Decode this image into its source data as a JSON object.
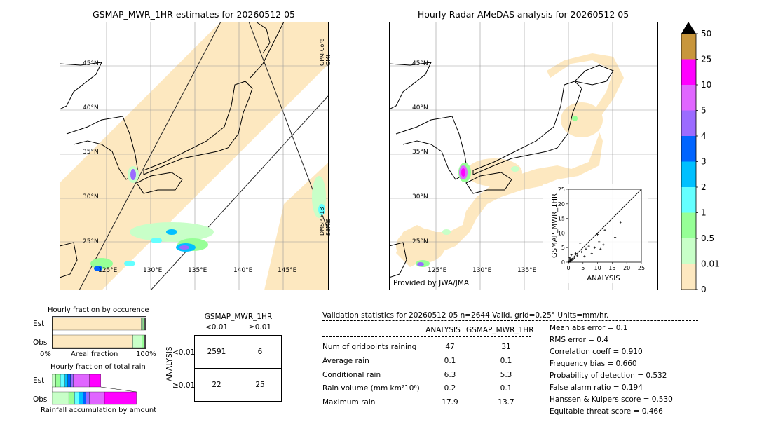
{
  "left_map": {
    "title": "GSMAP_MWR_1HR estimates for 20260512 05",
    "lat_labels": [
      "45°N",
      "40°N",
      "35°N",
      "30°N",
      "25°N"
    ],
    "lon_labels": [
      "125°E",
      "130°E",
      "135°E",
      "140°E",
      "145°E"
    ],
    "swath_labels": [
      "GPM-Core\nGMI",
      "DMSP-F18\nSSMIS"
    ]
  },
  "right_map": {
    "title": "Hourly Radar-AMeDAS analysis for 20260512 05",
    "lat_labels": [
      "45°N",
      "40°N",
      "35°N",
      "30°N",
      "25°N"
    ],
    "lon_labels": [
      "125°E",
      "130°E",
      "135°E"
    ],
    "credit": "Provided by JWA/JMA"
  },
  "colorbar": {
    "labels": [
      "50",
      "25",
      "10",
      "5",
      "4",
      "3",
      "2",
      "1",
      "0.5",
      "0.01",
      "0"
    ],
    "colors": [
      "#c8963c",
      "#ff00ff",
      "#e066ff",
      "#9b6bff",
      "#0064ff",
      "#00c0ff",
      "#64ffff",
      "#96ff96",
      "#c8ffc8",
      "#fde8c0"
    ]
  },
  "chart_data": [
    {
      "type": "scatter",
      "xlabel": "ANALYSIS",
      "ylabel": "GSMAP_MWR_1HR",
      "xlim": [
        0,
        25
      ],
      "ylim": [
        0,
        25
      ],
      "x_ticks": [
        "0",
        "5",
        "10",
        "15",
        "20",
        "25"
      ],
      "y_ticks": [
        "0",
        "5",
        "10",
        "15",
        "20",
        "25"
      ],
      "points": [
        [
          0.1,
          0.2
        ],
        [
          0.2,
          0.1
        ],
        [
          0.3,
          0.4
        ],
        [
          0.5,
          0.2
        ],
        [
          0.6,
          0.8
        ],
        [
          0.8,
          0.3
        ],
        [
          1.0,
          0.6
        ],
        [
          1.2,
          1.0
        ],
        [
          0.4,
          1.5
        ],
        [
          0.7,
          1.2
        ],
        [
          1.5,
          0.9
        ],
        [
          2.0,
          1.4
        ],
        [
          1.0,
          2.5
        ],
        [
          2.5,
          3.0
        ],
        [
          3.0,
          2.2
        ],
        [
          4.0,
          6.5
        ],
        [
          4.5,
          3.5
        ],
        [
          5.5,
          2.0
        ],
        [
          6.0,
          4.5
        ],
        [
          7.0,
          5.5
        ],
        [
          8.0,
          3.0
        ],
        [
          9.0,
          5.0
        ],
        [
          10.0,
          9.5
        ],
        [
          10.5,
          7.0
        ],
        [
          11.0,
          4.5
        ],
        [
          12.0,
          6.0
        ],
        [
          12.5,
          11.0
        ],
        [
          16.0,
          8.5
        ],
        [
          17.9,
          13.7
        ]
      ]
    },
    {
      "type": "bar",
      "title": "Hourly fraction by occurence",
      "categories": [
        "Est",
        "Obs"
      ],
      "xlabel": "Areal fraction",
      "x_ticks": [
        "0%",
        "100%"
      ],
      "series": [
        {
          "values": [
            0.95,
            0.86
          ],
          "color": "#fde8c0"
        },
        {
          "values": [
            0.02,
            0.1
          ],
          "color": "#c8ffc8"
        },
        {
          "values": [
            0.01,
            0.02
          ],
          "color": "#96ff96"
        },
        {
          "values": [
            0.02,
            0.02
          ],
          "color": "#505050"
        }
      ]
    },
    {
      "type": "bar",
      "title": "Hourly fraction of total rain",
      "categories": [
        "Est",
        "Obs"
      ],
      "xlabel": "Rainfall accumulation by amount",
      "series": [
        {
          "values": [
            0.04,
            0.18
          ],
          "color": "#c8ffc8"
        },
        {
          "values": [
            0.05,
            0.06
          ],
          "color": "#96ff96"
        },
        {
          "values": [
            0.05,
            0.05
          ],
          "color": "#64ffff"
        },
        {
          "values": [
            0.03,
            0.04
          ],
          "color": "#00c0ff"
        },
        {
          "values": [
            0.03,
            0.03
          ],
          "color": "#0064ff"
        },
        {
          "values": [
            0.03,
            0.04
          ],
          "color": "#9b6bff"
        },
        {
          "values": [
            0.17,
            0.16
          ],
          "color": "#e066ff"
        },
        {
          "values": [
            0.12,
            0.34
          ],
          "color": "#ff00ff"
        }
      ]
    }
  ],
  "contingency": {
    "title": "GSMAP_MWR_1HR",
    "col_headers": [
      "<0.01",
      "≥0.01"
    ],
    "row_label": "ANALYSIS",
    "row_headers": [
      "<0.01",
      "≥0.01"
    ],
    "cells": [
      [
        "2591",
        "6"
      ],
      [
        "22",
        "25"
      ]
    ]
  },
  "validation": {
    "header": "Validation statistics for 20260512 05  n=2644 Valid. grid=0.25° Units=mm/hr.",
    "col_analysis": "ANALYSIS",
    "col_gsmap": "GSMAP_MWR_1HR",
    "rows": [
      {
        "label": "Num of gridpoints raining",
        "a": "47",
        "g": "31"
      },
      {
        "label": "Average rain",
        "a": "0.1",
        "g": "0.1"
      },
      {
        "label": "Conditional rain",
        "a": "6.3",
        "g": "5.3"
      },
      {
        "label": "Rain volume (mm km²10⁶)",
        "a": "0.2",
        "g": "0.1"
      },
      {
        "label": "Maximum rain",
        "a": "17.9",
        "g": "13.7"
      }
    ],
    "scores": [
      "Mean abs error =    0.1",
      "RMS error =    0.4",
      "Correlation coeff =  0.910",
      "Frequency bias =  0.660",
      "Probability of detection =  0.532",
      "False alarm ratio =  0.194",
      "Hanssen & Kuipers score =  0.530",
      "Equitable threat score =  0.466"
    ]
  }
}
